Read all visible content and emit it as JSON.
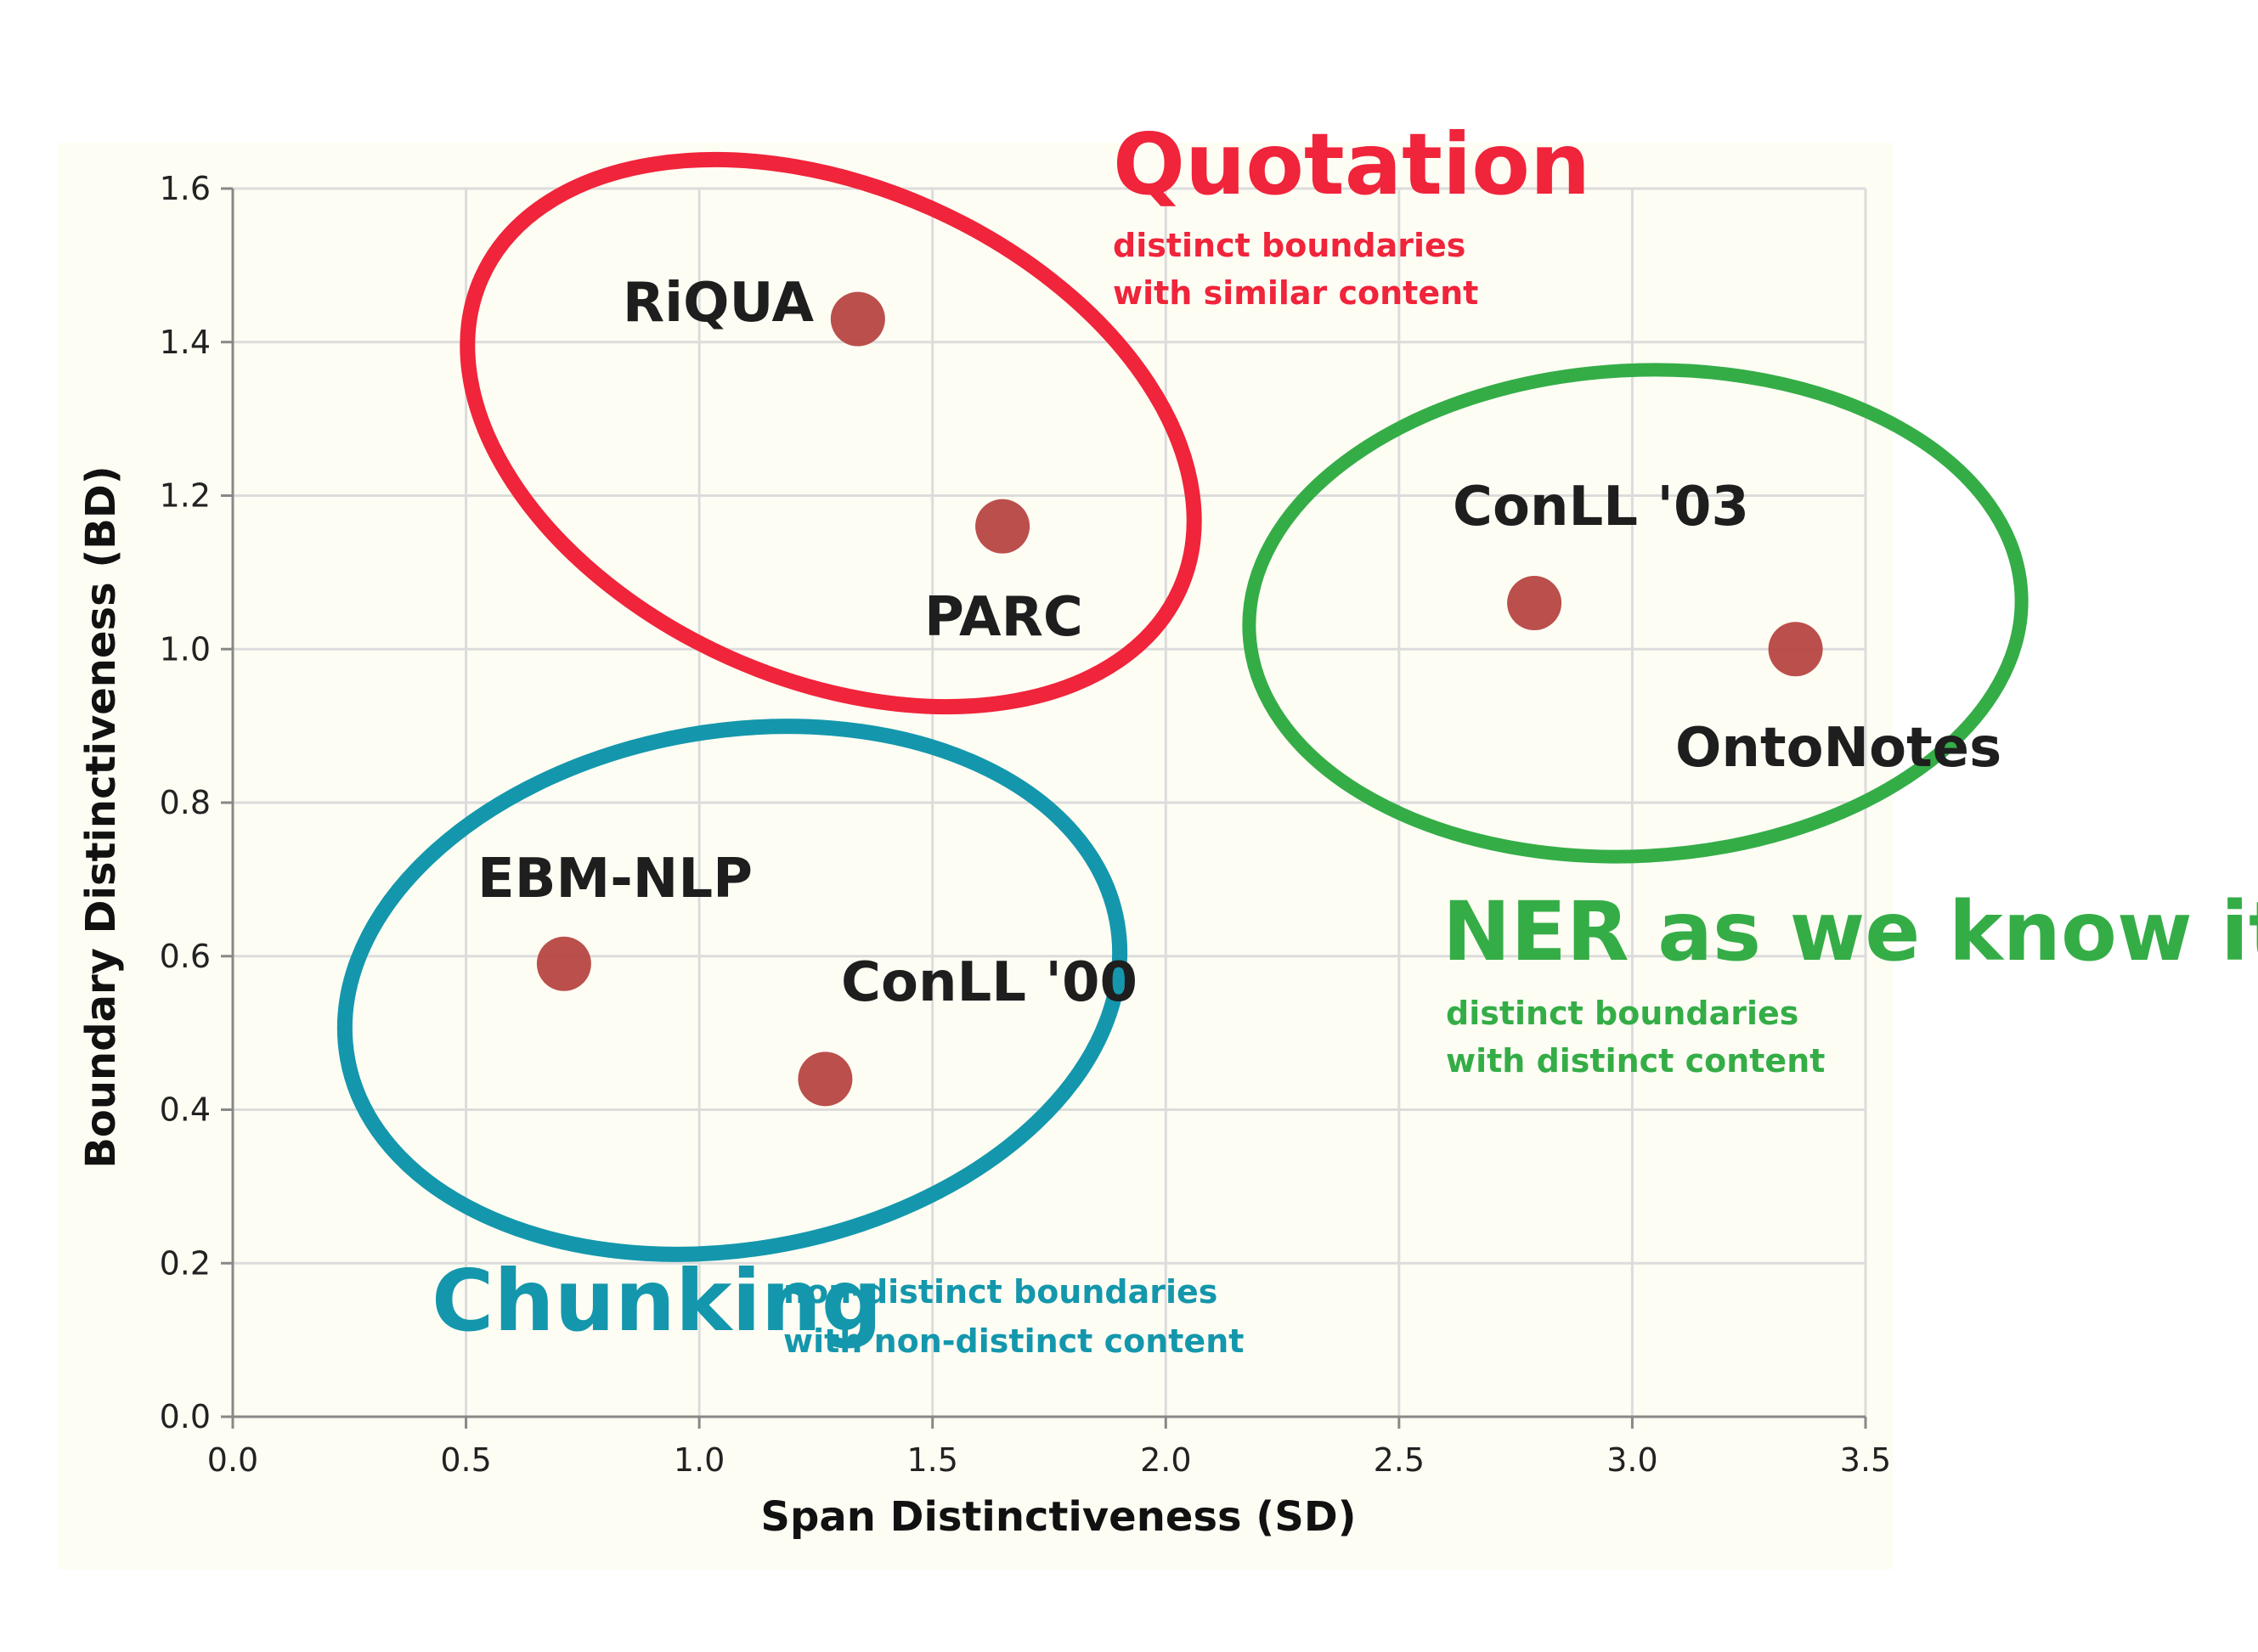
{
  "chart_data": {
    "type": "scatter",
    "xlabel": "Span Distinctiveness (SD)",
    "ylabel": "Boundary Distinctiveness (BD)",
    "xlim": [
      0.0,
      3.5
    ],
    "ylim": [
      0.0,
      1.6
    ],
    "x_ticks": [
      "0.0",
      "0.5",
      "1.0",
      "1.5",
      "2.0",
      "2.5",
      "3.0",
      "3.5"
    ],
    "y_ticks": [
      "0.0",
      "0.2",
      "0.4",
      "0.6",
      "0.8",
      "1.0",
      "1.2",
      "1.4",
      "1.6"
    ],
    "grid": true,
    "points": [
      {
        "label": "RiQUA",
        "x": 1.34,
        "y": 1.43,
        "group": "quotation"
      },
      {
        "label": "PARC",
        "x": 1.65,
        "y": 1.16,
        "group": "quotation"
      },
      {
        "label": "ConLL '03",
        "x": 2.79,
        "y": 1.06,
        "group": "ner"
      },
      {
        "label": "OntoNotes",
        "x": 3.35,
        "y": 1.0,
        "group": "ner"
      },
      {
        "label": "EBM-NLP",
        "x": 0.71,
        "y": 0.59,
        "group": "chunking"
      },
      {
        "label": "ConLL '00",
        "x": 1.27,
        "y": 0.44,
        "group": "chunking"
      }
    ],
    "groups": [
      {
        "id": "quotation",
        "title": "Quotation",
        "desc": [
          "distinct boundaries",
          "with similar content"
        ],
        "color": "#f0243a"
      },
      {
        "id": "ner",
        "title": "NER as we know it",
        "desc": [
          "distinct boundaries",
          "with distinct content"
        ],
        "color": "#35ad47"
      },
      {
        "id": "chunking",
        "title": "Chunking",
        "desc": [
          "non-distinct boundaries",
          "with non-distinct content"
        ],
        "color": "#1497ac"
      }
    ],
    "colors": {
      "point": "#b5403d",
      "background": "#fefdf4",
      "grid": "#dcdcdc",
      "axis": "#888888"
    }
  }
}
